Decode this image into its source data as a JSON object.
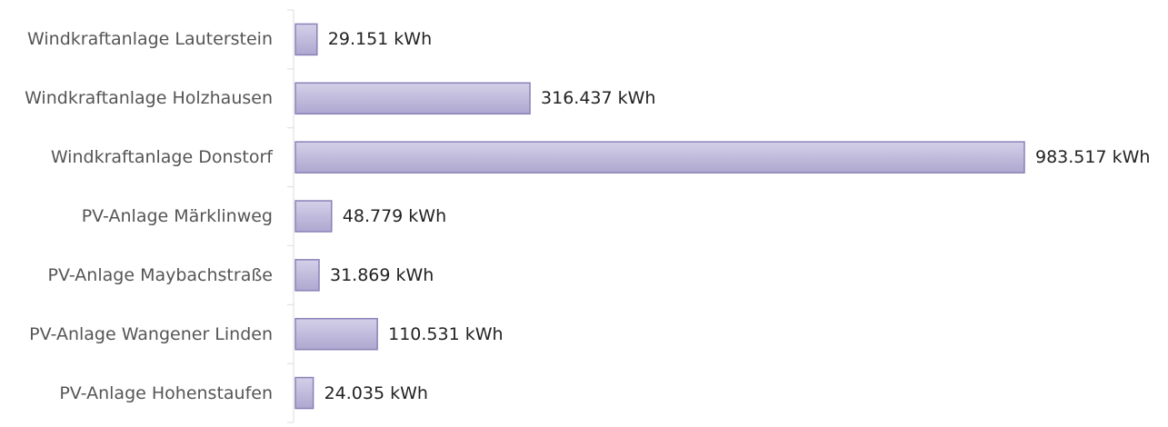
{
  "chart_data": {
    "type": "bar",
    "orientation": "horizontal",
    "categories": [
      "Windkraftanlage Lauterstein",
      "Windkraftanlage Holzhausen",
      "Windkraftanlage Donstorf",
      "PV-Anlage Märklinweg",
      "PV-Anlage Maybachstraße",
      "PV-Anlage Wangener Linden",
      "PV-Anlage Hohenstaufen"
    ],
    "values": [
      29151,
      316437,
      983517,
      48779,
      31869,
      110531,
      24035
    ],
    "value_labels": [
      "29.151 kWh",
      "316.437 kWh",
      "983.517 kWh",
      "48.779 kWh",
      "31.869 kWh",
      "110.531 kWh",
      "24.035 kWh"
    ],
    "color": "#bcb6d9"
  }
}
